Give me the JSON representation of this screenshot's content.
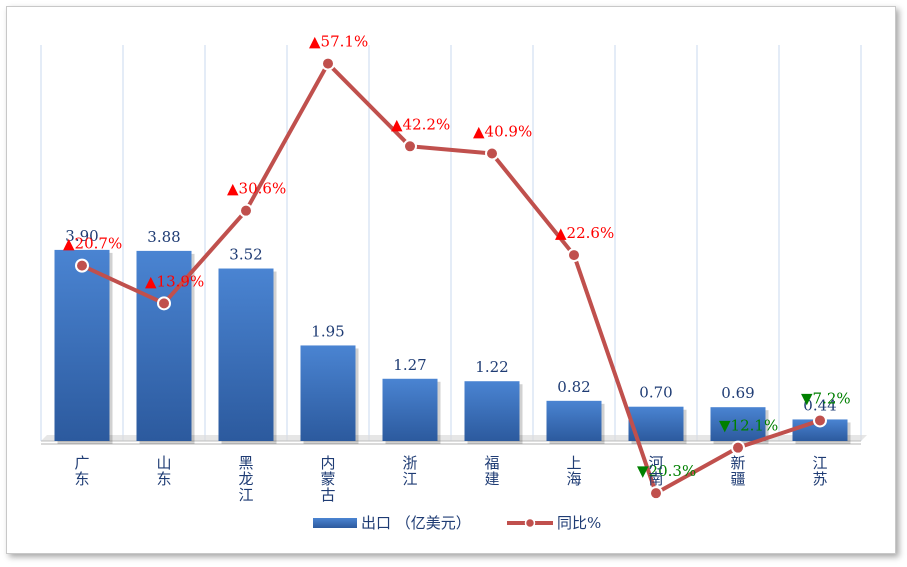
{
  "chart_data": {
    "type": "bar",
    "categories": [
      "广东",
      "山东",
      "黑龙江",
      "内蒙古",
      "浙江",
      "福建",
      "上海",
      "河南",
      "新疆",
      "江苏"
    ],
    "series": [
      {
        "name": "出口 （亿美元）",
        "type": "bar",
        "values": [
          3.9,
          3.88,
          3.52,
          1.95,
          1.27,
          1.22,
          0.82,
          0.7,
          0.69,
          0.44
        ],
        "color": "#3a72c0"
      },
      {
        "name": "同比%",
        "type": "line",
        "values": [
          20.7,
          13.9,
          30.6,
          57.1,
          42.2,
          40.9,
          22.6,
          -20.3,
          -12.1,
          -7.2
        ],
        "color": "#c0504d"
      }
    ],
    "bar_labels": [
      "3.90",
      "3.88",
      "3.52",
      "1.95",
      "1.27",
      "1.22",
      "0.82",
      "0.70",
      "0.69",
      "0.44"
    ],
    "pct_labels": [
      "20.7%",
      "13.9%",
      "30.6%",
      "57.1%",
      "42.2%",
      "40.9%",
      "22.6%",
      "20.3%",
      "12.1%",
      "7.2%"
    ],
    "pct_direction": [
      "up",
      "up",
      "up",
      "up",
      "up",
      "up",
      "up",
      "down",
      "down",
      "down"
    ],
    "up_color": "#ff0000",
    "down_color": "#008000",
    "grid": true,
    "legend_position": "bottom",
    "title": "",
    "xlabel": "",
    "ylabel": ""
  }
}
